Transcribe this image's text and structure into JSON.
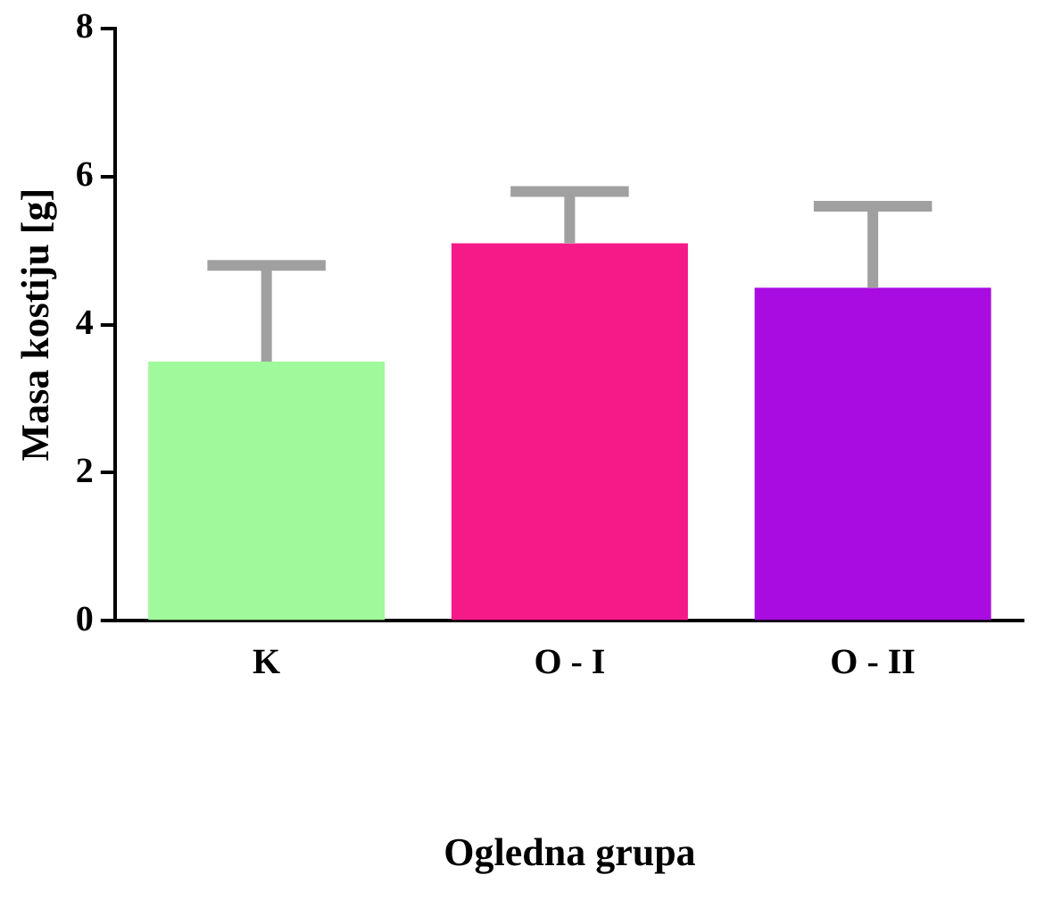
{
  "chart_data": {
    "type": "bar",
    "xlabel": "Ogledna grupa",
    "ylabel": "Masa kostiju [g]",
    "categories": [
      "K",
      "O - I",
      "O - II"
    ],
    "values": [
      3.5,
      5.1,
      4.5
    ],
    "colors": [
      "#a0f99a",
      "#f51a87",
      "#a80ce0"
    ],
    "errors": [
      [
        3.5,
        4.8
      ],
      [
        5.1,
        5.8
      ],
      [
        4.5,
        5.6
      ]
    ],
    "ylim": [
      0,
      8
    ],
    "yticks": [
      0,
      2,
      4,
      6,
      8
    ],
    "grid": false,
    "legend": false
  }
}
